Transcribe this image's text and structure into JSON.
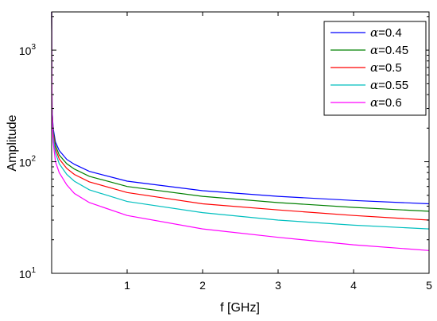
{
  "chart_data": {
    "type": "line",
    "xlabel": "f [GHz]",
    "ylabel": "Amplitude",
    "xlim": [
      0,
      5
    ],
    "ylim": [
      10,
      2200
    ],
    "yscale": "log",
    "xticks": [
      {
        "value": 1,
        "label": "1"
      },
      {
        "value": 2,
        "label": "2"
      },
      {
        "value": 3,
        "label": "3"
      },
      {
        "value": 4,
        "label": "4"
      },
      {
        "value": 5,
        "label": "5"
      }
    ],
    "yticks": [
      {
        "value": 10,
        "base": "10",
        "exp": "1"
      },
      {
        "value": 100,
        "base": "10",
        "exp": "2"
      },
      {
        "value": 1000,
        "base": "10",
        "exp": "3"
      }
    ],
    "grid": false,
    "legend_position": "top-right",
    "series": [
      {
        "name": "α=0.4",
        "symbol": "α",
        "label": "=0.4",
        "color": "#0000ff",
        "x": [
          0.0005,
          0.005,
          0.02,
          0.05,
          0.1,
          0.2,
          0.3,
          0.5,
          1,
          2,
          3,
          4,
          5
        ],
        "y": [
          2200,
          300,
          200,
          150,
          126,
          105,
          95,
          82,
          67,
          55,
          49,
          45,
          42
        ]
      },
      {
        "name": "α=0.45",
        "symbol": "α",
        "label": "=0.45",
        "color": "#008000",
        "x": [
          0.0005,
          0.005,
          0.02,
          0.05,
          0.1,
          0.2,
          0.3,
          0.5,
          1,
          2,
          3,
          4,
          5
        ],
        "y": [
          2200,
          300,
          190,
          140,
          115,
          96,
          86,
          74,
          60,
          49,
          43,
          39,
          36
        ]
      },
      {
        "name": "α=0.5",
        "symbol": "α",
        "label": "=0.5",
        "color": "#ff0000",
        "x": [
          0.0005,
          0.005,
          0.02,
          0.05,
          0.1,
          0.2,
          0.3,
          0.5,
          1,
          2,
          3,
          4,
          5
        ],
        "y": [
          2200,
          300,
          180,
          130,
          106,
          87,
          77,
          66,
          53,
          42,
          37,
          33,
          30
        ]
      },
      {
        "name": "α=0.55",
        "symbol": "α",
        "label": "=0.55",
        "color": "#00bfbf",
        "x": [
          0.0005,
          0.005,
          0.02,
          0.05,
          0.1,
          0.2,
          0.3,
          0.5,
          1,
          2,
          3,
          4,
          5
        ],
        "y": [
          2200,
          300,
          170,
          120,
          96,
          77,
          67,
          56,
          44,
          35,
          30,
          27,
          25
        ]
      },
      {
        "name": "α=0.6",
        "symbol": "α",
        "label": "=0.6",
        "color": "#ff00ff",
        "x": [
          0.0005,
          0.005,
          0.02,
          0.05,
          0.1,
          0.2,
          0.3,
          0.5,
          1,
          2,
          3,
          4,
          5
        ],
        "y": [
          2200,
          290,
          150,
          100,
          80,
          62,
          52,
          43,
          33,
          25,
          21,
          18,
          16
        ]
      }
    ]
  }
}
